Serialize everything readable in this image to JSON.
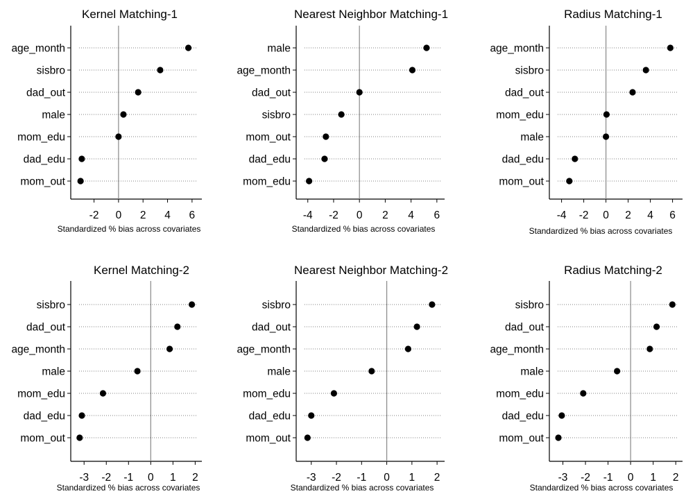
{
  "chart_data": [
    {
      "type": "scatter",
      "title": "Kernel Matching-1",
      "xlabel": "Standardized % bias across covariates",
      "categories": [
        "age_month",
        "sisbro",
        "dad_out",
        "male",
        "mom_edu",
        "dad_edu",
        "mom_out"
      ],
      "values": [
        5.7,
        3.4,
        1.6,
        0.4,
        0.0,
        -3.0,
        -3.1
      ],
      "xlim": [
        -3.9,
        6.8
      ],
      "xticks": [
        -2,
        0,
        2,
        4,
        6
      ],
      "xtick_labels": [
        "-2",
        "0",
        "2",
        "4",
        "6"
      ],
      "zero_line": true,
      "grid": "dotted horizontal"
    },
    {
      "type": "scatter",
      "title": "Nearest Neighbor Matching-1",
      "xlabel": "Standardized % bias across covariates",
      "categories": [
        "male",
        "age_month",
        "dad_out",
        "sisbro",
        "mom_out",
        "dad_edu",
        "mom_edu"
      ],
      "values": [
        5.2,
        4.1,
        0.0,
        -1.4,
        -2.6,
        -2.7,
        -3.9
      ],
      "xlim": [
        -4.9,
        6.6
      ],
      "xticks": [
        -4,
        -2,
        0,
        2,
        4,
        6
      ],
      "xtick_labels": [
        "-4",
        "-2",
        "0",
        "2",
        "4",
        "6"
      ],
      "zero_line": true,
      "grid": "dotted horizontal"
    },
    {
      "type": "scatter",
      "title": "Radius Matching-1",
      "xlabel": "Standardized % bias across covariates",
      "categories": [
        "age_month",
        "sisbro",
        "dad_out",
        "mom_edu",
        "male",
        "dad_edu",
        "mom_out"
      ],
      "values": [
        5.8,
        3.6,
        2.4,
        0.05,
        0.0,
        -2.8,
        -3.3
      ],
      "xlim": [
        -5.1,
        6.9
      ],
      "xticks": [
        -4,
        -2,
        0,
        2,
        4,
        6
      ],
      "xtick_labels": [
        "-4",
        "-2",
        "0",
        "2",
        "4",
        "6"
      ],
      "zero_line": true,
      "grid": "dotted horizontal"
    },
    {
      "type": "scatter",
      "title": "Kernel Matching-2",
      "xlabel": "Standardized % bias across covariates",
      "categories": [
        "sisbro",
        "dad_out",
        "age_month",
        "male",
        "mom_edu",
        "dad_edu",
        "mom_out"
      ],
      "values": [
        1.85,
        1.2,
        0.85,
        -0.6,
        -2.15,
        -3.1,
        -3.2
      ],
      "xlim": [
        -3.6,
        2.3
      ],
      "xticks": [
        -3,
        -2,
        -1,
        0,
        1,
        2
      ],
      "xtick_labels": [
        "-3",
        "-2",
        "-1",
        "0",
        "1",
        "2"
      ],
      "zero_line": true,
      "grid": "dotted horizontal"
    },
    {
      "type": "scatter",
      "title": "Nearest Neighbor Matching-2",
      "xlabel": "Standardized % bias across covariates",
      "categories": [
        "sisbro",
        "dad_out",
        "age_month",
        "male",
        "mom_edu",
        "dad_edu",
        "mom_out"
      ],
      "values": [
        1.8,
        1.2,
        0.85,
        -0.6,
        -2.1,
        -3.0,
        -3.15
      ],
      "xlim": [
        -3.6,
        2.3
      ],
      "xticks": [
        -3,
        -2,
        -1,
        0,
        1,
        2
      ],
      "xtick_labels": [
        "-3",
        "-2",
        "-1",
        "0",
        "1",
        "2"
      ],
      "zero_line": true,
      "grid": "dotted horizontal"
    },
    {
      "type": "scatter",
      "title": "Radius Matching-2",
      "xlabel": "Standardized % bias across covariates",
      "categories": [
        "sisbro",
        "dad_out",
        "age_month",
        "male",
        "mom_edu",
        "dad_edu",
        "mom_out"
      ],
      "values": [
        1.85,
        1.15,
        0.85,
        -0.6,
        -2.1,
        -3.05,
        -3.2
      ],
      "xlim": [
        -3.6,
        2.3
      ],
      "xticks": [
        -3,
        -2,
        -1,
        0,
        1,
        2
      ],
      "xtick_labels": [
        "-3",
        "-2",
        "-1",
        "0",
        "1",
        "2"
      ],
      "zero_line": true,
      "grid": "dotted horizontal"
    }
  ]
}
